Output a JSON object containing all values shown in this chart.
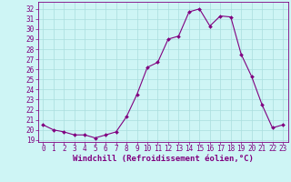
{
  "x": [
    0,
    1,
    2,
    3,
    4,
    5,
    6,
    7,
    8,
    9,
    10,
    11,
    12,
    13,
    14,
    15,
    16,
    17,
    18,
    19,
    20,
    21,
    22,
    23
  ],
  "y": [
    20.5,
    20.0,
    19.8,
    19.5,
    19.5,
    19.2,
    19.5,
    19.8,
    21.3,
    23.5,
    26.2,
    26.7,
    29.0,
    29.3,
    31.7,
    32.0,
    30.3,
    31.3,
    31.2,
    27.5,
    25.3,
    22.5,
    20.2,
    20.5
  ],
  "line_color": "#800080",
  "marker_color": "#800080",
  "bg_color": "#cef5f5",
  "grid_color": "#aadddd",
  "xlabel": "Windchill (Refroidissement éolien,°C)",
  "xlim": [
    -0.5,
    23.5
  ],
  "ylim": [
    18.8,
    32.7
  ],
  "yticks": [
    19,
    20,
    21,
    22,
    23,
    24,
    25,
    26,
    27,
    28,
    29,
    30,
    31,
    32
  ],
  "xticks": [
    0,
    1,
    2,
    3,
    4,
    5,
    6,
    7,
    8,
    9,
    10,
    11,
    12,
    13,
    14,
    15,
    16,
    17,
    18,
    19,
    20,
    21,
    22,
    23
  ],
  "label_fontsize": 6.5,
  "tick_fontsize": 5.5
}
